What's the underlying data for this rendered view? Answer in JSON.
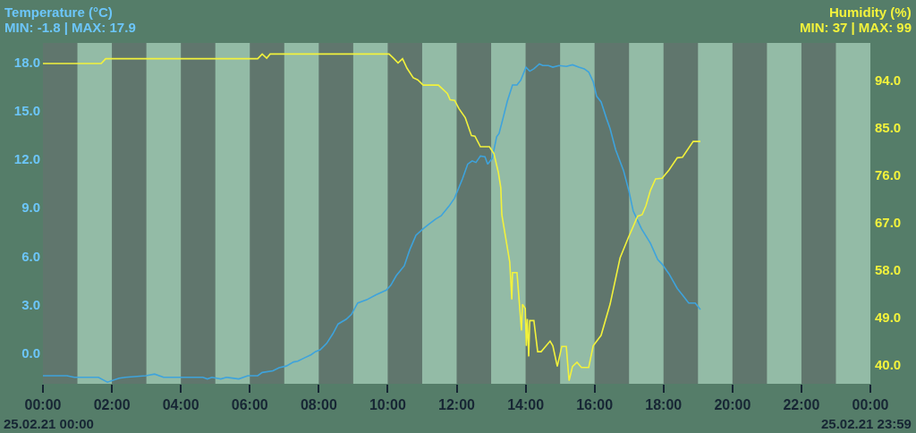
{
  "chart_data": {
    "type": "line",
    "ylabel": "Temperature (°C)",
    "y2label": "Humidity (%)",
    "annotations": [
      "MIN: -1.8 | MAX: 17.9",
      "MIN: 37 | MAX: 99",
      "25.02.21 00:00",
      "25.02.21 23:59"
    ],
    "xlim": [
      0,
      24
    ],
    "xticks": [
      {
        "value": 0,
        "label": "00:00"
      },
      {
        "value": 2,
        "label": "02:00"
      },
      {
        "value": 4,
        "label": "04:00"
      },
      {
        "value": 6,
        "label": "06:00"
      },
      {
        "value": 8,
        "label": "08:00"
      },
      {
        "value": 10,
        "label": "10:00"
      },
      {
        "value": 12,
        "label": "12:00"
      },
      {
        "value": 14,
        "label": "14:00"
      },
      {
        "value": 16,
        "label": "16:00"
      },
      {
        "value": 18,
        "label": "18:00"
      },
      {
        "value": 20,
        "label": "20:00"
      },
      {
        "value": 22,
        "label": "22:00"
      },
      {
        "value": 24,
        "label": "00:00"
      }
    ],
    "ylim": [
      -1.9,
      19.2
    ],
    "yticks": [
      {
        "value": 0,
        "label": "0.0"
      },
      {
        "value": 3,
        "label": "3.0"
      },
      {
        "value": 6,
        "label": "6.0"
      },
      {
        "value": 9,
        "label": "9.0"
      },
      {
        "value": 12,
        "label": "12.0"
      },
      {
        "value": 15,
        "label": "15.0"
      },
      {
        "value": 18,
        "label": "18.0"
      }
    ],
    "y2lim": [
      36.4,
      101.1
    ],
    "y2ticks": [
      {
        "value": 40,
        "label": "40.0"
      },
      {
        "value": 49,
        "label": "49.0"
      },
      {
        "value": 58,
        "label": "58.0"
      },
      {
        "value": 67,
        "label": "67.0"
      },
      {
        "value": 76,
        "label": "76.0"
      },
      {
        "value": 85,
        "label": "85.0"
      },
      {
        "value": 94,
        "label": "94.0"
      }
    ],
    "bands": [
      {
        "axis": "x",
        "from": 0,
        "to": 1,
        "color": "#4f5f59"
      },
      {
        "axis": "x",
        "from": 2,
        "to": 3,
        "color": "#4f5f59"
      },
      {
        "axis": "x",
        "from": 4,
        "to": 5,
        "color": "#4f5f59"
      },
      {
        "axis": "x",
        "from": 6,
        "to": 7,
        "color": "#4f5f59"
      },
      {
        "axis": "x",
        "from": 8,
        "to": 9,
        "color": "#4f5f59"
      },
      {
        "axis": "x",
        "from": 10,
        "to": 11,
        "color": "#4f5f59"
      },
      {
        "axis": "x",
        "from": 12,
        "to": 13,
        "color": "#4f5f59"
      },
      {
        "axis": "x",
        "from": 14,
        "to": 15,
        "color": "#4f5f59"
      },
      {
        "axis": "x",
        "from": 16,
        "to": 17,
        "color": "#4f5f59"
      },
      {
        "axis": "x",
        "from": 18,
        "to": 19,
        "color": "#4f5f59"
      },
      {
        "axis": "x",
        "from": 20,
        "to": 21,
        "color": "#4f5f59"
      },
      {
        "axis": "x",
        "from": 22,
        "to": 23,
        "color": "#4f5f59"
      }
    ],
    "series": [
      {
        "color": "#3ea3dc",
        "x": [
          0.0,
          0.7,
          0.91,
          1.61,
          1.87,
          2.21,
          2.39,
          2.98,
          3.24,
          3.5,
          4.64,
          4.77,
          4.9,
          5.16,
          5.32,
          5.68,
          5.94,
          6.23,
          6.36,
          6.67,
          6.85,
          7.06,
          7.27,
          7.39,
          7.58,
          7.78,
          7.91,
          8.04,
          8.23,
          8.41,
          8.56,
          8.8,
          8.95,
          9.13,
          9.39,
          9.65,
          9.96,
          10.09,
          10.25,
          10.48,
          10.64,
          10.82,
          11.03,
          11.21,
          11.39,
          11.55,
          11.78,
          11.94,
          12.17,
          12.32,
          12.45,
          12.56,
          12.69,
          12.82,
          12.9,
          13.03,
          13.16,
          13.23,
          13.34,
          13.47,
          13.62,
          13.75,
          13.86,
          14.01,
          14.12,
          14.24,
          14.4,
          14.5,
          14.66,
          14.79,
          14.97,
          15.18,
          15.36,
          15.54,
          15.7,
          15.83,
          15.96,
          16.06,
          16.19,
          16.35,
          16.45,
          16.61,
          16.84,
          17.0,
          17.12,
          17.36,
          17.62,
          17.83,
          17.96,
          18.16,
          18.4,
          18.55,
          18.73,
          18.92,
          19.07
        ],
        "values": [
          -1.4,
          -1.4,
          -1.5,
          -1.5,
          -1.8,
          -1.55,
          -1.5,
          -1.4,
          -1.3,
          -1.5,
          -1.5,
          -1.6,
          -1.5,
          -1.6,
          -1.5,
          -1.6,
          -1.4,
          -1.4,
          -1.2,
          -1.1,
          -0.9,
          -0.8,
          -0.55,
          -0.5,
          -0.3,
          -0.1,
          0.1,
          0.2,
          0.6,
          1.2,
          1.8,
          2.1,
          2.4,
          3.1,
          3.3,
          3.6,
          3.9,
          4.2,
          4.8,
          5.4,
          6.4,
          7.3,
          7.7,
          8.0,
          8.3,
          8.5,
          9.1,
          9.6,
          10.8,
          11.7,
          11.9,
          11.8,
          12.2,
          12.15,
          11.7,
          12.05,
          13.4,
          13.6,
          14.5,
          15.6,
          16.6,
          16.6,
          16.9,
          17.7,
          17.45,
          17.6,
          17.9,
          17.8,
          17.8,
          17.7,
          17.8,
          17.75,
          17.85,
          17.7,
          17.6,
          17.4,
          16.8,
          15.9,
          15.55,
          14.5,
          13.9,
          12.6,
          11.3,
          10.0,
          8.8,
          7.7,
          6.8,
          5.8,
          5.5,
          4.9,
          4.0,
          3.6,
          3.1,
          3.1,
          2.7
        ]
      },
      {
        "color": "#f2f23c",
        "axis": "y2",
        "x": [
          0.0,
          1.69,
          1.82,
          6.23,
          6.36,
          6.49,
          6.59,
          10.04,
          10.17,
          10.3,
          10.43,
          10.56,
          10.74,
          10.87,
          11.03,
          11.47,
          11.73,
          11.81,
          11.94,
          12.07,
          12.25,
          12.43,
          12.53,
          12.69,
          12.95,
          13.08,
          13.21,
          13.28,
          13.31,
          13.54,
          13.6,
          13.62,
          13.75,
          13.88,
          13.91,
          13.99,
          14.02,
          14.05,
          14.09,
          14.12,
          14.24,
          14.35,
          14.45,
          14.71,
          14.79,
          14.92,
          15.05,
          15.18,
          15.26,
          15.36,
          15.49,
          15.62,
          15.83,
          15.96,
          16.19,
          16.45,
          16.74,
          16.97,
          17.25,
          17.38,
          17.49,
          17.62,
          17.77,
          17.96,
          18.16,
          18.4,
          18.55,
          18.86,
          19.07
        ],
        "values": [
          97.2,
          97.2,
          98.1,
          98.1,
          99.0,
          98.2,
          99.0,
          99.0,
          98.2,
          97.3,
          98.1,
          96.3,
          94.5,
          94.1,
          93.1,
          93.1,
          91.5,
          90.3,
          90.2,
          88.6,
          86.9,
          83.5,
          83.4,
          81.4,
          81.4,
          80.1,
          76.5,
          73.6,
          68.5,
          59.5,
          52.4,
          57.5,
          57.5,
          46.5,
          51.5,
          50.7,
          43.6,
          48.7,
          41.6,
          48.4,
          48.4,
          42.5,
          42.5,
          44.5,
          43.6,
          39.7,
          43.5,
          43.5,
          37.0,
          39.7,
          40.5,
          39.5,
          39.5,
          43.6,
          45.6,
          51.5,
          60.3,
          64.0,
          68.2,
          68.5,
          70.2,
          73.1,
          75.3,
          75.4,
          77.0,
          79.3,
          79.4,
          82.4,
          82.4
        ]
      }
    ]
  }
}
